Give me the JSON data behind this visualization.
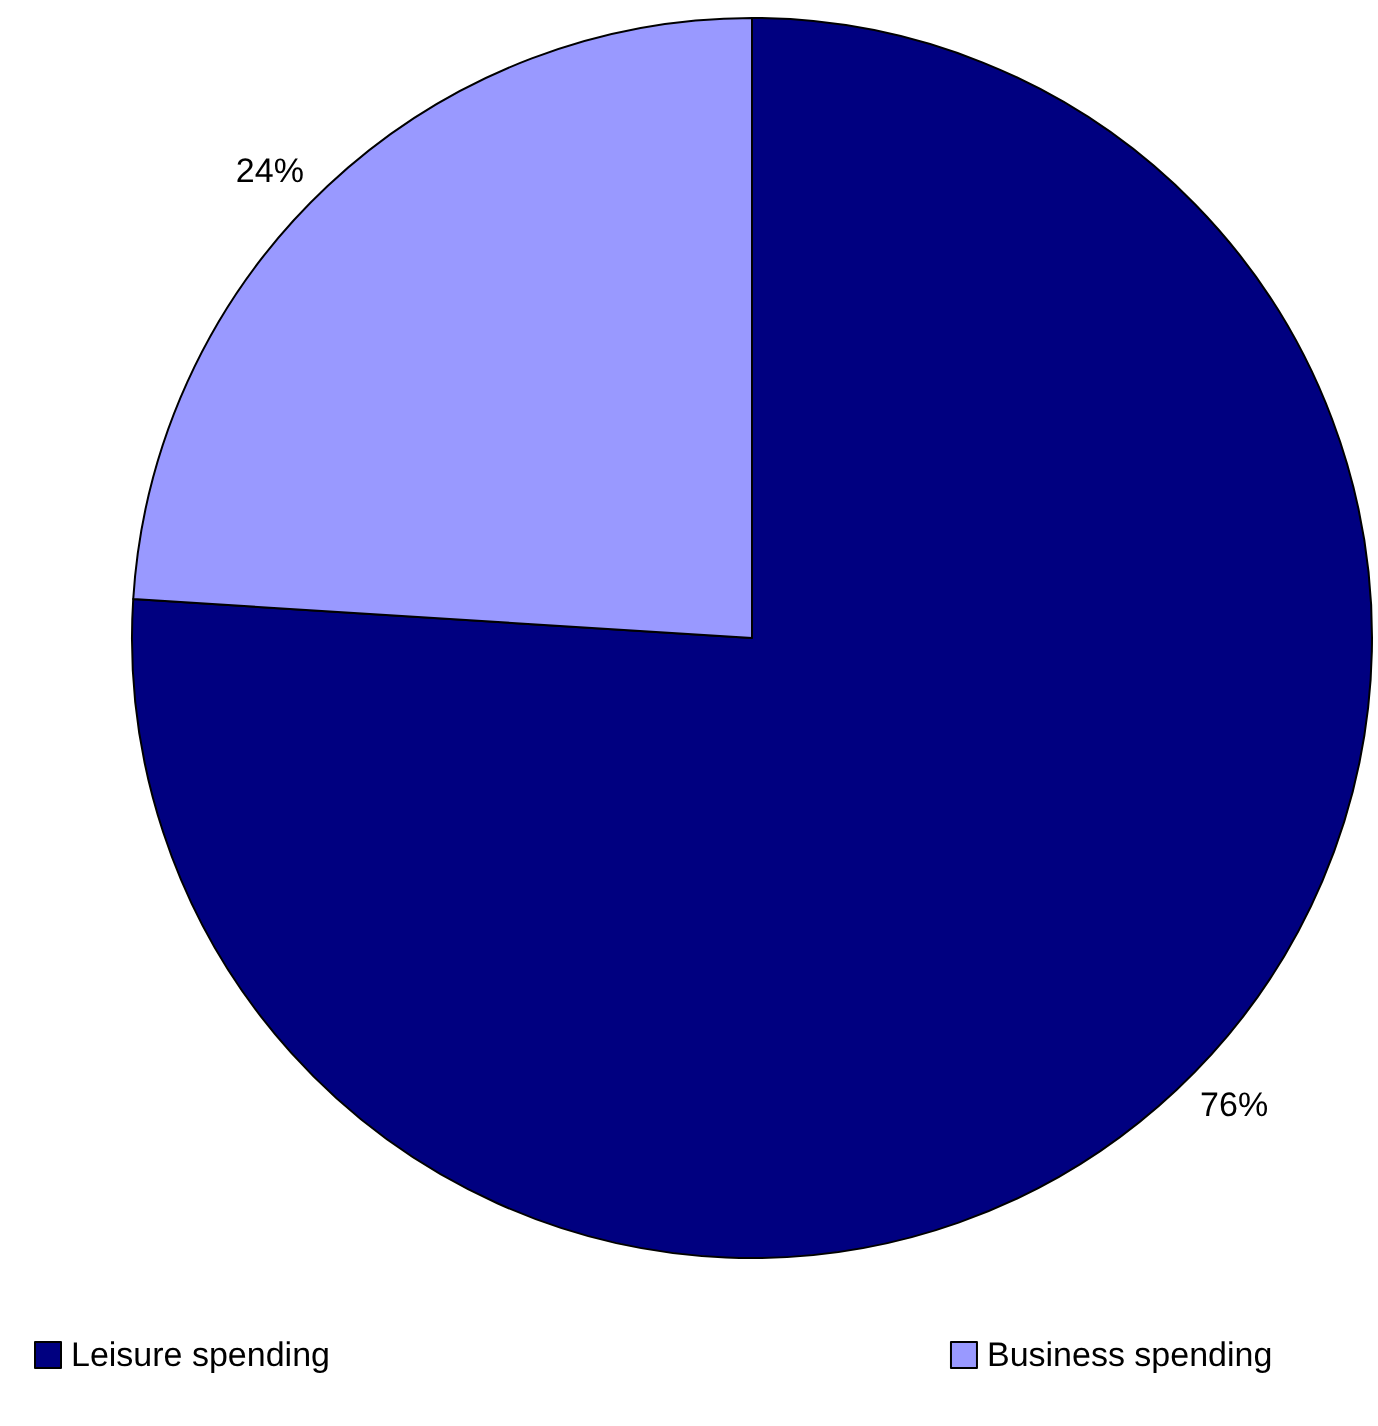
{
  "chart_data": {
    "type": "pie",
    "categories": [
      "Leisure spending",
      "Business spending"
    ],
    "values": [
      76,
      24
    ],
    "colors": [
      "#000080",
      "#9999ff"
    ],
    "value_labels": [
      "76%",
      "24%"
    ],
    "legend": "bottom"
  }
}
